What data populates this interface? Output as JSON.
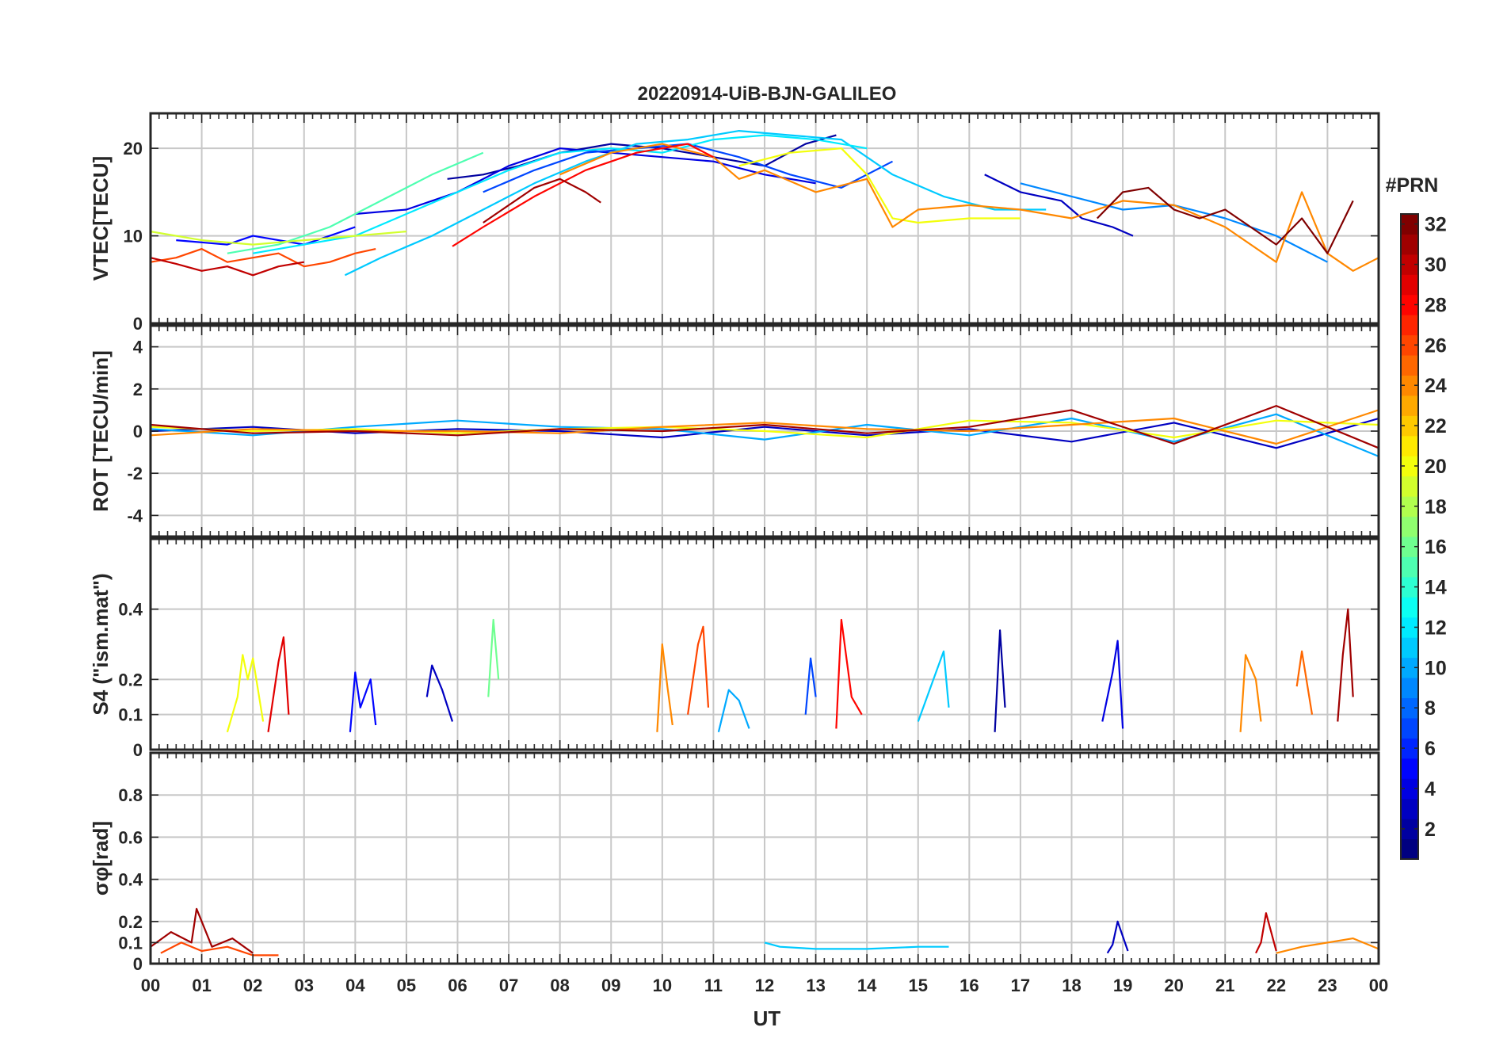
{
  "chart_data": {
    "type": "line",
    "title": "20220914-UiB-BJN-GALILEO",
    "xlabel": "UT",
    "x_ticks": [
      "00",
      "01",
      "02",
      "03",
      "04",
      "05",
      "06",
      "07",
      "08",
      "09",
      "10",
      "11",
      "12",
      "13",
      "14",
      "15",
      "16",
      "17",
      "18",
      "19",
      "20",
      "21",
      "22",
      "23",
      "00"
    ],
    "xlim": [
      0,
      24
    ],
    "grid": true,
    "colorbar": {
      "title": "#PRN",
      "range": [
        1,
        32
      ],
      "ticks": [
        2,
        4,
        6,
        8,
        10,
        12,
        14,
        16,
        18,
        20,
        22,
        24,
        26,
        28,
        30,
        32
      ],
      "colormap": "jet"
    },
    "panels": [
      {
        "id": "vtec",
        "ylabel": "VTEC[TECU]",
        "ylim": [
          0,
          24
        ],
        "y_ticks": [
          0,
          10,
          20
        ],
        "series": [
          {
            "prn": 2,
            "x": [
              5.8,
              6.5,
              7.2,
              8.0,
              9.0,
              10.0,
              11.0,
              12.0,
              12.8,
              13.4
            ],
            "y": [
              16.5,
              17.0,
              18.0,
              19.5,
              20.5,
              20.0,
              19.0,
              18.0,
              20.5,
              21.5
            ]
          },
          {
            "prn": 3,
            "x": [
              16.3,
              17.0,
              17.8,
              18.2,
              18.8,
              19.2
            ],
            "y": [
              17.0,
              15.0,
              14.0,
              12.0,
              11.0,
              10.0
            ]
          },
          {
            "prn": 4,
            "x": [
              4.0,
              5.0,
              6.0,
              7.0,
              8.0,
              9.0,
              10.0,
              11.0,
              12.0,
              13.0
            ],
            "y": [
              12.5,
              13.0,
              15.0,
              18.0,
              20.0,
              19.5,
              19.0,
              18.5,
              17.0,
              16.0
            ]
          },
          {
            "prn": 5,
            "x": [
              0.5,
              1.5,
              2.0,
              3.0,
              4.0
            ],
            "y": [
              9.5,
              9.0,
              10.0,
              9.0,
              11.0
            ]
          },
          {
            "prn": 7,
            "x": [
              6.5,
              7.5,
              8.5,
              9.5,
              10.5,
              11.5,
              12.5,
              13.5,
              14.5
            ],
            "y": [
              15.0,
              17.5,
              19.5,
              20.0,
              20.5,
              19.0,
              17.0,
              15.5,
              18.5
            ]
          },
          {
            "prn": 9,
            "x": [
              17.0,
              18.0,
              19.0,
              20.0,
              21.0,
              22.0,
              23.0
            ],
            "y": [
              16.0,
              14.5,
              13.0,
              13.5,
              12.0,
              10.0,
              7.0
            ]
          },
          {
            "prn": 11,
            "x": [
              3.8,
              4.5,
              5.5,
              6.5,
              7.5,
              8.5,
              9.5,
              10.5,
              11.5,
              12.5,
              13.5,
              14.5,
              15.5,
              16.5,
              17.5
            ],
            "y": [
              5.5,
              7.5,
              10.0,
              13.0,
              16.0,
              18.5,
              20.5,
              21.0,
              22.0,
              21.5,
              21.0,
              17.0,
              14.5,
              13.0,
              13.0
            ]
          },
          {
            "prn": 12,
            "x": [
              2.0,
              3.0,
              4.0,
              5.0,
              6.0,
              7.0,
              8.0,
              9.0,
              10.0,
              11.0,
              12.0,
              13.0,
              14.0
            ],
            "y": [
              8.0,
              9.0,
              10.0,
              12.5,
              15.0,
              17.5,
              19.5,
              20.0,
              19.5,
              21.0,
              21.5,
              21.0,
              20.0
            ]
          },
          {
            "prn": 15,
            "x": [
              1.5,
              2.5,
              3.5,
              4.5,
              5.5,
              6.5
            ],
            "y": [
              8.0,
              9.0,
              11.0,
              14.0,
              17.0,
              19.5
            ]
          },
          {
            "prn": 19,
            "x": [
              0.0,
              1.0,
              2.0,
              3.0,
              4.0,
              5.0
            ],
            "y": [
              10.5,
              9.5,
              9.0,
              9.5,
              10.0,
              10.5
            ]
          },
          {
            "prn": 20,
            "x": [
              11.5,
              12.5,
              13.5,
              14.0,
              14.5,
              15.0,
              16.0,
              17.0
            ],
            "y": [
              18.0,
              19.5,
              20.0,
              17.0,
              12.0,
              11.5,
              12.0,
              12.0
            ]
          },
          {
            "prn": 24,
            "x": [
              8.0,
              9.0,
              10.0,
              11.0,
              11.5,
              12.0,
              13.0,
              14.0,
              14.5,
              15.0,
              16.0,
              17.0,
              18.0,
              19.0,
              20.0,
              21.0,
              22.0,
              22.5,
              23.0,
              23.5,
              24.0
            ],
            "y": [
              17.0,
              19.5,
              20.5,
              19.0,
              16.5,
              17.5,
              15.0,
              16.5,
              11.0,
              13.0,
              13.5,
              13.0,
              12.0,
              14.0,
              13.5,
              11.0,
              7.0,
              15.0,
              8.0,
              6.0,
              7.5
            ]
          },
          {
            "prn": 26,
            "x": [
              0.0,
              0.5,
              1.0,
              1.5,
              2.0,
              2.5,
              3.0,
              3.5,
              4.0,
              4.4
            ],
            "y": [
              7.0,
              7.5,
              8.5,
              7.0,
              7.5,
              8.0,
              6.5,
              7.0,
              8.0,
              8.5
            ]
          },
          {
            "prn": 28,
            "x": [
              5.9,
              6.5,
              7.5,
              8.5,
              9.5,
              10.5,
              11.0
            ],
            "y": [
              8.8,
              11.0,
              14.5,
              17.5,
              19.5,
              20.5,
              19.0
            ]
          },
          {
            "prn": 30,
            "x": [
              0.0,
              0.5,
              1.0,
              1.5,
              2.0,
              2.5,
              3.0
            ],
            "y": [
              7.5,
              6.8,
              6.0,
              6.5,
              5.5,
              6.5,
              7.0
            ]
          },
          {
            "prn": 31,
            "x": [
              6.5,
              7.0,
              7.5,
              8.0,
              8.5,
              8.8
            ],
            "y": [
              11.5,
              13.5,
              15.5,
              16.5,
              15.0,
              13.8
            ]
          },
          {
            "prn": 32,
            "x": [
              18.5,
              19.0,
              19.5,
              20.0,
              20.5,
              21.0,
              21.5,
              22.0,
              22.5,
              23.0,
              23.5
            ],
            "y": [
              12.0,
              15.0,
              15.5,
              13.0,
              12.0,
              13.0,
              11.0,
              9.0,
              12.0,
              8.0,
              14.0
            ]
          }
        ]
      },
      {
        "id": "rot",
        "ylabel": "ROT [TECU/min]",
        "ylim": [
          -5,
          5
        ],
        "y_ticks": [
          -4,
          -2,
          0,
          2,
          4
        ],
        "series": [
          {
            "prn": 3,
            "x": [
              0,
              2,
              4,
              6,
              8,
              10,
              12,
              14,
              16,
              18,
              20,
              22,
              24
            ],
            "y": [
              0.0,
              0.2,
              -0.1,
              0.1,
              0.0,
              -0.3,
              0.2,
              -0.2,
              0.1,
              -0.5,
              0.4,
              -0.8,
              0.6
            ]
          },
          {
            "prn": 10,
            "x": [
              0,
              2,
              4,
              6,
              8,
              10,
              12,
              14,
              16,
              18,
              20,
              22,
              24
            ],
            "y": [
              0.1,
              -0.2,
              0.2,
              0.5,
              0.2,
              0.1,
              -0.4,
              0.3,
              -0.2,
              0.6,
              -0.5,
              0.8,
              -1.2
            ]
          },
          {
            "prn": 20,
            "x": [
              0,
              2,
              4,
              6,
              8,
              10,
              12,
              14,
              16,
              18,
              20,
              22,
              24
            ],
            "y": [
              0.2,
              0.0,
              0.1,
              -0.1,
              0.1,
              0.2,
              0.0,
              -0.3,
              0.5,
              0.4,
              -0.3,
              0.5,
              0.3
            ]
          },
          {
            "prn": 24,
            "x": [
              0,
              2,
              4,
              6,
              8,
              10,
              12,
              14,
              16,
              18,
              20,
              22,
              24
            ],
            "y": [
              -0.2,
              0.1,
              0.0,
              0.0,
              -0.1,
              0.2,
              0.4,
              0.1,
              0.0,
              0.3,
              0.6,
              -0.6,
              1.0
            ]
          },
          {
            "prn": 31,
            "x": [
              0,
              2,
              4,
              6,
              8,
              10,
              12,
              14,
              16,
              18,
              20,
              22,
              24
            ],
            "y": [
              0.3,
              -0.1,
              0.0,
              -0.2,
              0.1,
              0.0,
              0.3,
              -0.1,
              0.2,
              1.0,
              -0.6,
              1.2,
              -0.8
            ]
          }
        ]
      },
      {
        "id": "s4",
        "ylabel": "S4 (\"ism.mat\")",
        "ylim": [
          0,
          0.6
        ],
        "y_ticks": [
          0,
          0.1,
          0.2,
          0.4
        ],
        "series": [
          {
            "prn": 20,
            "x": [
              1.5,
              1.7,
              1.8,
              1.9,
              2.0,
              2.2
            ],
            "y": [
              0.05,
              0.15,
              0.27,
              0.2,
              0.26,
              0.08
            ]
          },
          {
            "prn": 29,
            "x": [
              2.3,
              2.5,
              2.6,
              2.7
            ],
            "y": [
              0.05,
              0.25,
              0.32,
              0.1
            ]
          },
          {
            "prn": 5,
            "x": [
              3.9,
              4.0,
              4.1,
              4.3,
              4.4
            ],
            "y": [
              0.05,
              0.22,
              0.12,
              0.2,
              0.07
            ]
          },
          {
            "prn": 3,
            "x": [
              5.4,
              5.5,
              5.7,
              5.9
            ],
            "y": [
              0.15,
              0.24,
              0.17,
              0.08
            ]
          },
          {
            "prn": 16,
            "x": [
              6.6,
              6.7,
              6.8
            ],
            "y": [
              0.15,
              0.37,
              0.2
            ]
          },
          {
            "prn": 24,
            "x": [
              9.9,
              10.0,
              10.1,
              10.2
            ],
            "y": [
              0.05,
              0.3,
              0.18,
              0.07
            ]
          },
          {
            "prn": 26,
            "x": [
              10.5,
              10.7,
              10.8,
              10.9
            ],
            "y": [
              0.1,
              0.3,
              0.35,
              0.12
            ]
          },
          {
            "prn": 10,
            "x": [
              11.1,
              11.3,
              11.5,
              11.7
            ],
            "y": [
              0.05,
              0.17,
              0.14,
              0.06
            ]
          },
          {
            "prn": 7,
            "x": [
              12.8,
              12.9,
              13.0
            ],
            "y": [
              0.1,
              0.26,
              0.15
            ]
          },
          {
            "prn": 28,
            "x": [
              13.4,
              13.5,
              13.7,
              13.9
            ],
            "y": [
              0.06,
              0.37,
              0.15,
              0.1
            ]
          },
          {
            "prn": 11,
            "x": [
              15.0,
              15.3,
              15.5,
              15.6
            ],
            "y": [
              0.08,
              0.2,
              0.28,
              0.12
            ]
          },
          {
            "prn": 2,
            "x": [
              16.5,
              16.6,
              16.7
            ],
            "y": [
              0.05,
              0.34,
              0.12
            ]
          },
          {
            "prn": 4,
            "x": [
              18.6,
              18.8,
              18.9,
              19.0
            ],
            "y": [
              0.08,
              0.22,
              0.31,
              0.06
            ]
          },
          {
            "prn": 24,
            "x": [
              21.3,
              21.4,
              21.6,
              21.7
            ],
            "y": [
              0.05,
              0.27,
              0.2,
              0.08
            ]
          },
          {
            "prn": 25,
            "x": [
              22.4,
              22.5,
              22.7
            ],
            "y": [
              0.18,
              0.28,
              0.1
            ]
          },
          {
            "prn": 31,
            "x": [
              23.2,
              23.3,
              23.4,
              23.5
            ],
            "y": [
              0.08,
              0.27,
              0.4,
              0.15
            ]
          }
        ]
      },
      {
        "id": "sigma",
        "ylabel": "σφ[rad]",
        "ylim": [
          0,
          1.0
        ],
        "y_ticks": [
          0,
          0.1,
          0.2,
          0.4,
          0.6,
          0.8
        ],
        "series": [
          {
            "prn": 31,
            "x": [
              0.0,
              0.4,
              0.8,
              0.9,
              1.2,
              1.6,
              2.0
            ],
            "y": [
              0.08,
              0.15,
              0.1,
              0.26,
              0.08,
              0.12,
              0.05
            ]
          },
          {
            "prn": 26,
            "x": [
              0.2,
              0.6,
              1.0,
              1.5,
              2.0,
              2.5
            ],
            "y": [
              0.05,
              0.1,
              0.06,
              0.08,
              0.04,
              0.04
            ]
          },
          {
            "prn": 11,
            "x": [
              12.0,
              12.3,
              13.0,
              14.0,
              15.0,
              15.6
            ],
            "y": [
              0.1,
              0.08,
              0.07,
              0.07,
              0.08,
              0.08
            ]
          },
          {
            "prn": 3,
            "x": [
              18.7,
              18.8,
              18.9,
              19.1
            ],
            "y": [
              0.05,
              0.09,
              0.2,
              0.06
            ]
          },
          {
            "prn": 30,
            "x": [
              21.6,
              21.7,
              21.8,
              22.0
            ],
            "y": [
              0.05,
              0.1,
              0.24,
              0.06
            ]
          },
          {
            "prn": 24,
            "x": [
              22.0,
              22.5,
              23.0,
              23.5,
              24.0
            ],
            "y": [
              0.05,
              0.08,
              0.1,
              0.12,
              0.07
            ]
          }
        ]
      }
    ]
  }
}
